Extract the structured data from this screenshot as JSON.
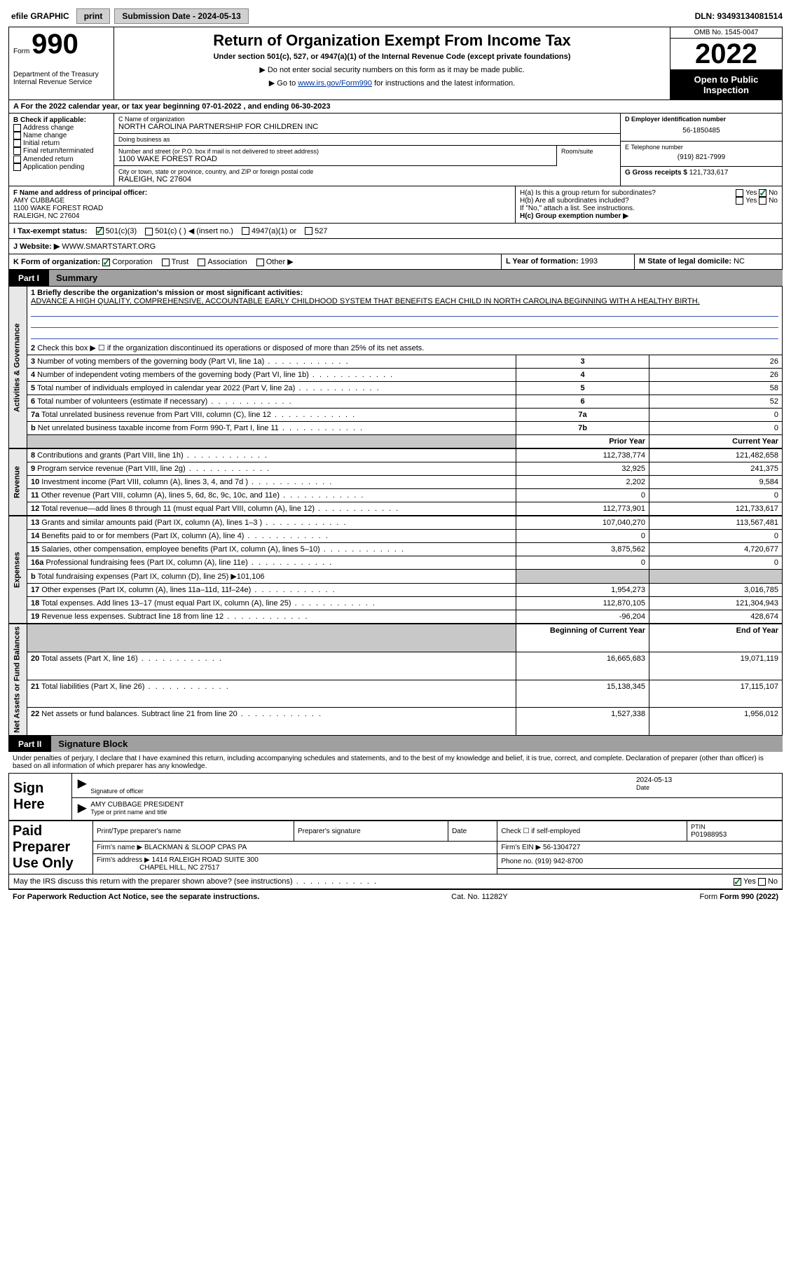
{
  "topbar": {
    "efile": "efile GRAPHIC",
    "print": "print",
    "submission_label": "Submission Date - 2024-05-13",
    "dln": "DLN: 93493134081514"
  },
  "header": {
    "form_prefix": "Form",
    "form_num": "990",
    "title": "Return of Organization Exempt From Income Tax",
    "subtitle": "Under section 501(c), 527, or 4947(a)(1) of the Internal Revenue Code (except private foundations)",
    "note1": "▶ Do not enter social security numbers on this form as it may be made public.",
    "note2_pre": "▶ Go to ",
    "note2_link": "www.irs.gov/Form990",
    "note2_post": " for instructions and the latest information.",
    "dept": "Department of the Treasury",
    "irs": "Internal Revenue Service",
    "omb": "OMB No. 1545-0047",
    "year": "2022",
    "inspection": "Open to Public Inspection"
  },
  "rowA": "A For the 2022 calendar year, or tax year beginning 07-01-2022    , and ending 06-30-2023",
  "colB": {
    "title": "B Check if applicable:",
    "opts": [
      "Address change",
      "Name change",
      "Initial return",
      "Final return/terminated",
      "Amended return",
      "Application pending"
    ]
  },
  "colC": {
    "name_lbl": "C Name of organization",
    "name": "NORTH CAROLINA PARTNERSHIP FOR CHILDREN INC",
    "dba_lbl": "Doing business as",
    "dba": "",
    "addr_lbl": "Number and street (or P.O. box if mail is not delivered to street address)",
    "room_lbl": "Room/suite",
    "addr": "1100 WAKE FOREST ROAD",
    "city_lbl": "City or town, state or province, country, and ZIP or foreign postal code",
    "city": "RALEIGH, NC  27604"
  },
  "colD": {
    "ein_lbl": "D Employer identification number",
    "ein": "56-1850485",
    "tel_lbl": "E Telephone number",
    "tel": "(919) 821-7999",
    "gross_lbl": "G Gross receipts $",
    "gross": "121,733,617"
  },
  "rowF": {
    "lbl": "F  Name and address of principal officer:",
    "name": "AMY CUBBAGE",
    "addr1": "1100 WAKE FOREST ROAD",
    "addr2": "RALEIGH, NC  27604"
  },
  "rowH": {
    "ha": "H(a)  Is this a group return for subordinates?",
    "hb": "H(b)  Are all subordinates included?",
    "hb_note": "If \"No,\" attach a list. See instructions.",
    "hc": "H(c)  Group exemption number ▶"
  },
  "rowI": {
    "lbl": "I  Tax-exempt status:",
    "o1": "501(c)(3)",
    "o2": "501(c) (  ) ◀ (insert no.)",
    "o3": "4947(a)(1) or",
    "o4": "527"
  },
  "rowJ": {
    "lbl": "J  Website: ▶",
    "val": "WWW.SMARTSTART.ORG"
  },
  "rowK": {
    "lbl": "K Form of organization:",
    "o1": "Corporation",
    "o2": "Trust",
    "o3": "Association",
    "o4": "Other ▶",
    "l_lbl": "L Year of formation:",
    "l_val": "1993",
    "m_lbl": "M State of legal domicile:",
    "m_val": "NC"
  },
  "part1": {
    "num": "Part I",
    "title": "Summary"
  },
  "mission": {
    "q": "1  Briefly describe the organization's mission or most significant activities:",
    "text": "ADVANCE A HIGH QUALITY, COMPREHENSIVE, ACCOUNTABLE EARLY CHILDHOOD SYSTEM THAT BENEFITS EACH CHILD IN NORTH CAROLINA BEGINNING WITH A HEALTHY BIRTH."
  },
  "line2": "Check this box ▶ ☐  if the organization discontinued its operations or disposed of more than 25% of its net assets.",
  "summary_rows": [
    {
      "n": "3",
      "t": "Number of voting members of the governing body (Part VI, line 1a)",
      "box": "3",
      "v": "26"
    },
    {
      "n": "4",
      "t": "Number of independent voting members of the governing body (Part VI, line 1b)",
      "box": "4",
      "v": "26"
    },
    {
      "n": "5",
      "t": "Total number of individuals employed in calendar year 2022 (Part V, line 2a)",
      "box": "5",
      "v": "58"
    },
    {
      "n": "6",
      "t": "Total number of volunteers (estimate if necessary)",
      "box": "6",
      "v": "52"
    },
    {
      "n": "7a",
      "t": "Total unrelated business revenue from Part VIII, column (C), line 12",
      "box": "7a",
      "v": "0"
    },
    {
      "n": "b",
      "t": "Net unrelated business taxable income from Form 990-T, Part I, line 11",
      "box": "7b",
      "v": "0"
    }
  ],
  "py_cy_hdr": {
    "py": "Prior Year",
    "cy": "Current Year"
  },
  "revenue_rows": [
    {
      "n": "8",
      "t": "Contributions and grants (Part VIII, line 1h)",
      "py": "112,738,774",
      "cy": "121,482,658"
    },
    {
      "n": "9",
      "t": "Program service revenue (Part VIII, line 2g)",
      "py": "32,925",
      "cy": "241,375"
    },
    {
      "n": "10",
      "t": "Investment income (Part VIII, column (A), lines 3, 4, and 7d )",
      "py": "2,202",
      "cy": "9,584"
    },
    {
      "n": "11",
      "t": "Other revenue (Part VIII, column (A), lines 5, 6d, 8c, 9c, 10c, and 11e)",
      "py": "0",
      "cy": "0"
    },
    {
      "n": "12",
      "t": "Total revenue—add lines 8 through 11 (must equal Part VIII, column (A), line 12)",
      "py": "112,773,901",
      "cy": "121,733,617"
    }
  ],
  "expense_rows": [
    {
      "n": "13",
      "t": "Grants and similar amounts paid (Part IX, column (A), lines 1–3 )",
      "py": "107,040,270",
      "cy": "113,567,481"
    },
    {
      "n": "14",
      "t": "Benefits paid to or for members (Part IX, column (A), line 4)",
      "py": "0",
      "cy": "0"
    },
    {
      "n": "15",
      "t": "Salaries, other compensation, employee benefits (Part IX, column (A), lines 5–10)",
      "py": "3,875,562",
      "cy": "4,720,677"
    },
    {
      "n": "16a",
      "t": "Professional fundraising fees (Part IX, column (A), line 11e)",
      "py": "0",
      "cy": "0"
    },
    {
      "n": "b",
      "t": "Total fundraising expenses (Part IX, column (D), line 25) ▶101,106",
      "py": "",
      "cy": "",
      "shade": true
    },
    {
      "n": "17",
      "t": "Other expenses (Part IX, column (A), lines 11a–11d, 11f–24e)",
      "py": "1,954,273",
      "cy": "3,016,785"
    },
    {
      "n": "18",
      "t": "Total expenses. Add lines 13–17 (must equal Part IX, column (A), line 25)",
      "py": "112,870,105",
      "cy": "121,304,943"
    },
    {
      "n": "19",
      "t": "Revenue less expenses. Subtract line 18 from line 12",
      "py": "-96,204",
      "cy": "428,674"
    }
  ],
  "na_hdr": {
    "py": "Beginning of Current Year",
    "cy": "End of Year"
  },
  "na_rows": [
    {
      "n": "20",
      "t": "Total assets (Part X, line 16)",
      "py": "16,665,683",
      "cy": "19,071,119"
    },
    {
      "n": "21",
      "t": "Total liabilities (Part X, line 26)",
      "py": "15,138,345",
      "cy": "17,115,107"
    },
    {
      "n": "22",
      "t": "Net assets or fund balances. Subtract line 21 from line 20",
      "py": "1,527,338",
      "cy": "1,956,012"
    }
  ],
  "part2": {
    "num": "Part II",
    "title": "Signature Block"
  },
  "sig": {
    "decl": "Under penalties of perjury, I declare that I have examined this return, including accompanying schedules and statements, and to the best of my knowledge and belief, it is true, correct, and complete. Declaration of preparer (other than officer) is based on all information of which preparer has any knowledge.",
    "sign_here": "Sign Here",
    "officer_sig_lbl": "Signature of officer",
    "date": "2024-05-13",
    "date_lbl": "Date",
    "officer_name": "AMY CUBBAGE  PRESIDENT",
    "name_lbl": "Type or print name and title"
  },
  "prep": {
    "title": "Paid Preparer Use Only",
    "h1": "Print/Type preparer's name",
    "h2": "Preparer's signature",
    "h3": "Date",
    "h4": "Check ☐ if self-employed",
    "h5": "PTIN",
    "ptin": "P01988953",
    "firm_lbl": "Firm's name     ▶",
    "firm": "BLACKMAN & SLOOP CPAS PA",
    "ein_lbl": "Firm's EIN ▶",
    "ein": "56-1304727",
    "addr_lbl": "Firm's address ▶",
    "addr1": "1414 RALEIGH ROAD SUITE 300",
    "addr2": "CHAPEL HILL, NC  27517",
    "phone_lbl": "Phone no.",
    "phone": "(919) 942-8700"
  },
  "discuss": "May the IRS discuss this return with the preparer shown above? (see instructions)",
  "footer": {
    "pra": "For Paperwork Reduction Act Notice, see the separate instructions.",
    "cat": "Cat. No. 11282Y",
    "form": "Form 990 (2022)"
  },
  "vert_labels": {
    "ag": "Activities & Governance",
    "rev": "Revenue",
    "exp": "Expenses",
    "na": "Net Assets or Fund Balances"
  },
  "colors": {
    "link": "#003399",
    "rule": "#3355aa",
    "green": "#0a7d2c"
  }
}
